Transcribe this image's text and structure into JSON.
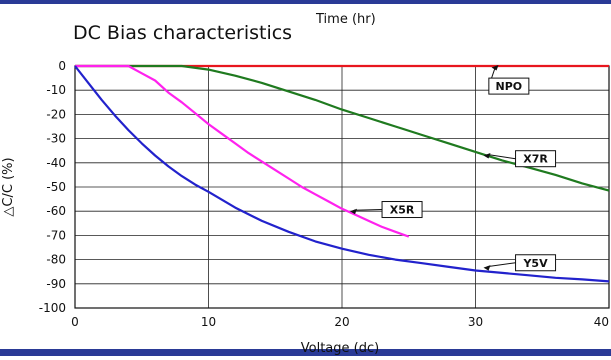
{
  "chart_data": {
    "type": "line",
    "title": "DC Bias characteristics",
    "top_label": "Time (hr)",
    "xlabel": "Voltage (dc)",
    "ylabel": "△C/C (%)",
    "xlim": [
      0,
      40
    ],
    "ylim": [
      -100,
      0
    ],
    "x_ticks": [
      0,
      10,
      20,
      30,
      40
    ],
    "y_ticks": [
      0,
      -10,
      -20,
      -30,
      -40,
      -50,
      -60,
      -70,
      -80,
      -90,
      -100
    ],
    "x_tick_labels": [
      "0",
      "10",
      "20",
      "30",
      "40"
    ],
    "y_tick_labels": [
      "0",
      "-10",
      "-20",
      "-30",
      "-40",
      "-50",
      "-60",
      "-70",
      "-80",
      "-90",
      "-100"
    ],
    "grid": true,
    "series": [
      {
        "name": "NPO",
        "color": "#e8161e",
        "x": [
          0,
          10,
          20,
          30,
          40
        ],
        "y": [
          0,
          0,
          0,
          0,
          0
        ],
        "label_at": [
          32,
          -2
        ]
      },
      {
        "name": "X7R",
        "color": "#1f7a1f",
        "x": [
          0,
          8,
          10,
          12,
          14,
          16,
          18,
          20,
          22,
          24,
          26,
          28,
          30,
          32,
          34,
          36,
          38,
          40
        ],
        "y": [
          0,
          0,
          -1.5,
          -4,
          -7,
          -10.5,
          -14,
          -18,
          -21.5,
          -25,
          -28.5,
          -32,
          -35.5,
          -39,
          -42,
          -45,
          -48.5,
          -51.5
        ],
        "label_at": [
          30.5,
          -36
        ]
      },
      {
        "name": "X5R",
        "color": "#ff22ee",
        "x": [
          0,
          4,
          5,
          6,
          7,
          8,
          9,
          10,
          11,
          12,
          13,
          14,
          15,
          16,
          17,
          18,
          19,
          20,
          21,
          22,
          23,
          24,
          25
        ],
        "y": [
          0,
          0,
          -3,
          -6,
          -11,
          -15,
          -19.5,
          -24,
          -28,
          -32,
          -36,
          -39.5,
          -43,
          -46.5,
          -50,
          -53,
          -56,
          -59,
          -61.5,
          -64,
          -66.5,
          -68.5,
          -70.5
        ],
        "label_at": [
          20.5,
          -59
        ]
      },
      {
        "name": "Y5V",
        "color": "#2222cc",
        "x": [
          0,
          1,
          2,
          3,
          4,
          5,
          6,
          7,
          8,
          9,
          10,
          12,
          14,
          16,
          18,
          20,
          22,
          24,
          26,
          28,
          30,
          32,
          34,
          36,
          38,
          40
        ],
        "y": [
          0,
          -7,
          -14,
          -20.5,
          -26.5,
          -32,
          -37,
          -41.5,
          -45.5,
          -49,
          -52,
          -58.5,
          -64,
          -68.5,
          -72.5,
          -75.5,
          -78,
          -80,
          -81.5,
          -83,
          -84.5,
          -85.5,
          -86.5,
          -87.5,
          -88.2,
          -89
        ],
        "label_at": [
          30.5,
          -83
        ]
      }
    ]
  }
}
